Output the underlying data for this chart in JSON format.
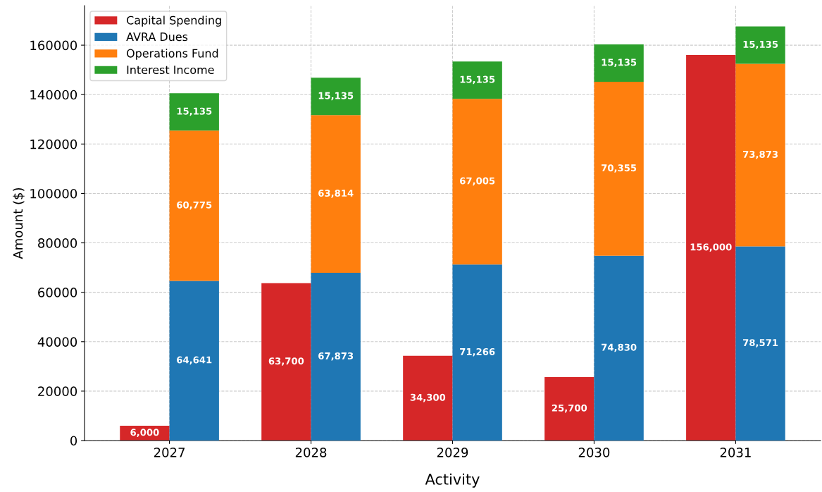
{
  "chart_data": [
    {
      "type": "bar",
      "xlabel": "Activity",
      "ylabel": "Amount ($)",
      "categories": [
        "2027",
        "2028",
        "2029",
        "2030",
        "2031"
      ],
      "series": [
        {
          "name": "Capital Spending",
          "color": "#d62728",
          "values": [
            6000,
            63700,
            34300,
            25700,
            156000
          ],
          "value_labels": [
            "6,000",
            "63,700",
            "34,300",
            "25,700",
            "156,000"
          ]
        }
      ],
      "ylim": [
        0,
        176000
      ],
      "yticks": [
        0,
        20000,
        40000,
        60000,
        80000,
        100000,
        120000,
        140000,
        160000
      ],
      "grid": true,
      "legend": "top left"
    },
    {
      "type": "bar",
      "stacked": true,
      "categories": [
        "2027",
        "2028",
        "2029",
        "2030",
        "2031"
      ],
      "series": [
        {
          "name": "AVRA Dues",
          "color": "#1f77b4",
          "values": [
            64641,
            67873,
            71266,
            74830,
            78571
          ],
          "value_labels": [
            "64,641",
            "67,873",
            "71,266",
            "74,830",
            "78,571"
          ]
        },
        {
          "name": "Operations Fund",
          "color": "#ff7f0e",
          "values": [
            60775,
            63814,
            67005,
            70355,
            73873
          ],
          "value_labels": [
            "60,775",
            "63,814",
            "67,005",
            "70,355",
            "73,873"
          ]
        },
        {
          "name": "Interest Income",
          "color": "#2ca02c",
          "values": [
            15135,
            15135,
            15135,
            15135,
            15135
          ],
          "value_labels": [
            "15,135",
            "15,135",
            "15,135",
            "15,135",
            "15,135"
          ]
        }
      ],
      "ylim": [
        0,
        176000
      ],
      "yticks": [
        0,
        20000,
        40000,
        60000,
        80000,
        100000,
        120000,
        140000,
        160000
      ],
      "tick_labels": false,
      "legend": "top left"
    }
  ]
}
